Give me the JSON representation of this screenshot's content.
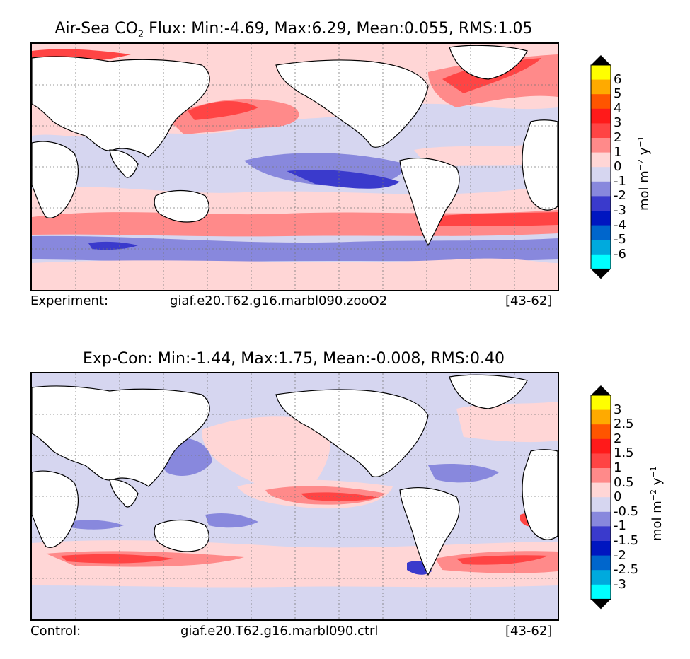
{
  "panels": [
    {
      "title_main": "Air-Sea CO",
      "title_sub": "2",
      "title_rest": " Flux: Min:-4.69, Max:6.29, Mean:0.055, RMS:1.05",
      "caption_left": "Experiment:",
      "caption_center": "giaf.e20.T62.g16.marbl090.zooO2",
      "caption_right": "[43-62]",
      "colorbar": {
        "ticks": [
          "6",
          "5",
          "4",
          "3",
          "2",
          "1",
          "0",
          "-1",
          "-2",
          "-3",
          "-4",
          "-5",
          "-6"
        ],
        "unit_text": "mol m",
        "unit_exp1": "−2",
        "unit_mid": " y",
        "unit_exp2": "−1"
      }
    },
    {
      "title_main": "Exp-Con: Min:-1.44, Max:1.75, Mean:-0.008, RMS:0.40",
      "caption_left": "Control:",
      "caption_center": "giaf.e20.T62.g16.marbl090.ctrl",
      "caption_right": "[43-62]",
      "colorbar": {
        "ticks": [
          "3",
          "2.5",
          "2",
          "1.5",
          "1",
          "0.5",
          "0",
          "-0.5",
          "-1",
          "-1.5",
          "-2",
          "-2.5",
          "-3"
        ],
        "unit_text": "mol m",
        "unit_exp1": "−2",
        "unit_mid": " y",
        "unit_exp2": "−1"
      }
    }
  ],
  "colors": {
    "levels_top_to_bottom": [
      "#ffff00",
      "#ffaa00",
      "#ff5500",
      "#ff1a1a",
      "#ff4444",
      "#ff8a8a",
      "#ffd6d6",
      "#d6d6f0",
      "#8888dd",
      "#3a3acc",
      "#0016c0",
      "#0066cc",
      "#00aadd",
      "#00ffff"
    ],
    "extend": "#000000",
    "land": "#ffffff",
    "grid": "#777777"
  }
}
